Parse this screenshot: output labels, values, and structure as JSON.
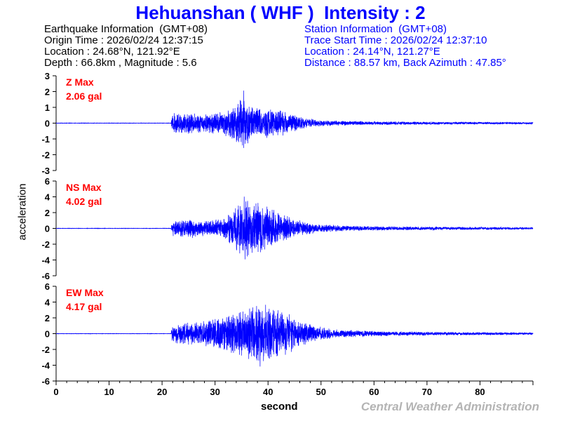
{
  "title": "Hehuanshan ( WHF )  Intensity : 2",
  "earthquake": {
    "header": "Earthquake Information  (GMT+08)",
    "origin_time": "Origin Time : 2026/02/24 12:37:15",
    "location": "Location : 24.68°N, 121.92°E",
    "depth_magnitude": "Depth : 66.8km , Magnitude : 5.6"
  },
  "station": {
    "header": "Station Information  (GMT+08)",
    "trace_start": "Trace Start Time : 2026/02/24 12:37:10",
    "location": "Location : 24.14°N, 121.27°E",
    "distance": "Distance : 88.57 km, Back Azimuth : 47.85°"
  },
  "y_label": "acceleration",
  "x_label": "second",
  "credit": "Central Weather Administration",
  "colors": {
    "trace": "#0000ff",
    "max_label": "#ff0000",
    "axis": "#000000"
  },
  "chart_data": [
    {
      "type": "line",
      "component": "Z",
      "max_label": "Z Max",
      "max_value": "2.06 gal",
      "ylim": [
        -3,
        3
      ],
      "yticks": [
        3,
        2,
        1,
        0,
        -1,
        -2,
        -3
      ],
      "xlim": [
        0,
        90
      ],
      "xticks": [
        0,
        10,
        20,
        30,
        40,
        50,
        60,
        70,
        80
      ],
      "onset_s": 21.8,
      "peak": {
        "x": 35.4,
        "y": 2.06
      },
      "envelope": [
        [
          0,
          0.01
        ],
        [
          21.7,
          0.01
        ],
        [
          21.9,
          0.7
        ],
        [
          25,
          0.75
        ],
        [
          28,
          0.6
        ],
        [
          31,
          0.8
        ],
        [
          33,
          1.0
        ],
        [
          35.4,
          2.06
        ],
        [
          37,
          1.2
        ],
        [
          40,
          1.0
        ],
        [
          43,
          0.8
        ],
        [
          47,
          0.35
        ],
        [
          50,
          0.2
        ],
        [
          60,
          0.12
        ],
        [
          70,
          0.1
        ],
        [
          80,
          0.08
        ],
        [
          90,
          0.07
        ]
      ],
      "xlabel": "second",
      "ylabel": "acceleration"
    },
    {
      "type": "line",
      "component": "NS",
      "max_label": "NS Max",
      "max_value": "4.02 gal",
      "ylim": [
        -6,
        6
      ],
      "yticks": [
        6,
        4,
        2,
        0,
        -2,
        -4,
        -6
      ],
      "xlim": [
        0,
        90
      ],
      "xticks": [
        0,
        10,
        20,
        30,
        40,
        50,
        60,
        70,
        80
      ],
      "onset_s": 21.8,
      "peak": {
        "x": 35.5,
        "y": 4.02
      },
      "envelope": [
        [
          0,
          0.02
        ],
        [
          21.7,
          0.02
        ],
        [
          21.9,
          1.1
        ],
        [
          25,
          1.3
        ],
        [
          28,
          1.0
        ],
        [
          31,
          1.3
        ],
        [
          33,
          2.2
        ],
        [
          35.5,
          4.02
        ],
        [
          37.5,
          3.5
        ],
        [
          40,
          3.0
        ],
        [
          42,
          2.2
        ],
        [
          45,
          1.2
        ],
        [
          49,
          0.6
        ],
        [
          55,
          0.35
        ],
        [
          65,
          0.25
        ],
        [
          80,
          0.2
        ],
        [
          90,
          0.15
        ]
      ],
      "xlabel": "second",
      "ylabel": "acceleration"
    },
    {
      "type": "line",
      "component": "EW",
      "max_label": "EW Max",
      "max_value": "4.17 gal",
      "ylim": [
        -6,
        6
      ],
      "yticks": [
        6,
        4,
        2,
        0,
        -2,
        -4,
        -6
      ],
      "xlim": [
        0,
        90
      ],
      "xticks": [
        0,
        10,
        20,
        30,
        40,
        50,
        60,
        70,
        80
      ],
      "onset_s": 21.8,
      "peak": {
        "x": 38.5,
        "y": -4.17
      },
      "envelope": [
        [
          0,
          0.02
        ],
        [
          21.7,
          0.02
        ],
        [
          21.9,
          1.3
        ],
        [
          25,
          1.5
        ],
        [
          29,
          1.8
        ],
        [
          33,
          2.6
        ],
        [
          36,
          3.4
        ],
        [
          38.5,
          4.17
        ],
        [
          40.5,
          3.6
        ],
        [
          43,
          3.0
        ],
        [
          45,
          2.2
        ],
        [
          48,
          1.2
        ],
        [
          52,
          0.6
        ],
        [
          60,
          0.35
        ],
        [
          70,
          0.25
        ],
        [
          80,
          0.2
        ],
        [
          90,
          0.15
        ]
      ],
      "xlabel": "second",
      "ylabel": "acceleration"
    }
  ]
}
